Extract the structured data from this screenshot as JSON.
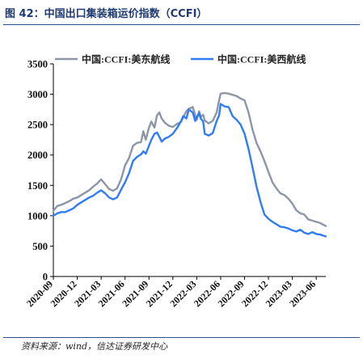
{
  "figure_title": "图 42：中国出口集装箱运价指数（CCFI）",
  "source": "资料来源：wind，信达证券研发中心",
  "chart_data": {
    "type": "line",
    "title": "",
    "xlabel": "",
    "ylabel": "",
    "ylim": [
      0,
      3500
    ],
    "yticks": [
      0,
      500,
      1000,
      1500,
      2000,
      2500,
      3000,
      3500
    ],
    "x_tick_labels": [
      "2020-09",
      "2020-12",
      "2021-03",
      "2021-06",
      "2021-09",
      "2021-12",
      "2022-03",
      "2022-06",
      "2022-09",
      "2022-12",
      "2023-03",
      "2023-06"
    ],
    "x_range_months": [
      0,
      34.2
    ],
    "grid": false,
    "legend_position": "top",
    "series": [
      {
        "name": "中国:CCFI:美东航线",
        "color": "#8c96a8",
        "points": [
          [
            0,
            1080
          ],
          [
            0.5,
            1160
          ],
          [
            1,
            1180
          ],
          [
            1.5,
            1210
          ],
          [
            2,
            1240
          ],
          [
            2.5,
            1280
          ],
          [
            3,
            1300
          ],
          [
            3.5,
            1340
          ],
          [
            4,
            1380
          ],
          [
            4.5,
            1420
          ],
          [
            5,
            1480
          ],
          [
            5.5,
            1530
          ],
          [
            6,
            1600
          ],
          [
            6.5,
            1520
          ],
          [
            7,
            1440
          ],
          [
            7.5,
            1410
          ],
          [
            8,
            1450
          ],
          [
            8.5,
            1600
          ],
          [
            9,
            1830
          ],
          [
            9.5,
            1950
          ],
          [
            10,
            2150
          ],
          [
            10.5,
            2200
          ],
          [
            11,
            2210
          ],
          [
            11.3,
            2390
          ],
          [
            11.6,
            2250
          ],
          [
            12,
            2450
          ],
          [
            12.3,
            2550
          ],
          [
            12.7,
            2450
          ],
          [
            13,
            2650
          ],
          [
            13.3,
            2700
          ],
          [
            13.6,
            2600
          ],
          [
            14,
            2530
          ],
          [
            14.5,
            2480
          ],
          [
            15,
            2460
          ],
          [
            15.5,
            2510
          ],
          [
            16,
            2540
          ],
          [
            16.3,
            2620
          ],
          [
            16.7,
            2720
          ],
          [
            17,
            2760
          ],
          [
            17.5,
            2790
          ],
          [
            17.8,
            2660
          ],
          [
            18,
            2580
          ],
          [
            18.3,
            2720
          ],
          [
            18.5,
            2630
          ],
          [
            18.8,
            2660
          ],
          [
            19,
            2570
          ],
          [
            19.5,
            2520
          ],
          [
            20,
            2560
          ],
          [
            20.5,
            2700
          ],
          [
            20.8,
            2900
          ],
          [
            21,
            3010
          ],
          [
            21.5,
            3020
          ],
          [
            22,
            3010
          ],
          [
            22.5,
            2990
          ],
          [
            23,
            2970
          ],
          [
            23.5,
            2930
          ],
          [
            24,
            2900
          ],
          [
            24.5,
            2700
          ],
          [
            25,
            2420
          ],
          [
            25.5,
            2200
          ],
          [
            26,
            2060
          ],
          [
            26.5,
            1900
          ],
          [
            27,
            1720
          ],
          [
            27.5,
            1550
          ],
          [
            28,
            1450
          ],
          [
            28.5,
            1370
          ],
          [
            29,
            1340
          ],
          [
            29.5,
            1280
          ],
          [
            30,
            1200
          ],
          [
            30.5,
            1090
          ],
          [
            31,
            1040
          ],
          [
            31.5,
            1020
          ],
          [
            32,
            940
          ],
          [
            32.5,
            920
          ],
          [
            33,
            900
          ],
          [
            33.5,
            880
          ],
          [
            34.2,
            830
          ]
        ]
      },
      {
        "name": "中国:CCFI:美西航线",
        "color": "#2f7cf6",
        "points": [
          [
            0,
            1000
          ],
          [
            0.5,
            1040
          ],
          [
            1,
            1060
          ],
          [
            1.5,
            1060
          ],
          [
            2,
            1090
          ],
          [
            2.5,
            1120
          ],
          [
            3,
            1180
          ],
          [
            3.5,
            1220
          ],
          [
            4,
            1260
          ],
          [
            4.5,
            1300
          ],
          [
            5,
            1330
          ],
          [
            5.5,
            1380
          ],
          [
            6,
            1420
          ],
          [
            6.5,
            1370
          ],
          [
            7,
            1300
          ],
          [
            7.5,
            1270
          ],
          [
            8,
            1300
          ],
          [
            8.5,
            1430
          ],
          [
            9,
            1550
          ],
          [
            9.5,
            1700
          ],
          [
            10,
            1900
          ],
          [
            10.5,
            1970
          ],
          [
            11,
            2010
          ],
          [
            11.3,
            2060
          ],
          [
            11.6,
            2020
          ],
          [
            12,
            2150
          ],
          [
            12.3,
            2250
          ],
          [
            12.7,
            2350
          ],
          [
            13,
            2370
          ],
          [
            13.3,
            2300
          ],
          [
            13.6,
            2220
          ],
          [
            14,
            2270
          ],
          [
            14.5,
            2300
          ],
          [
            15,
            2350
          ],
          [
            15.5,
            2440
          ],
          [
            16,
            2550
          ],
          [
            16.3,
            2640
          ],
          [
            16.7,
            2600
          ],
          [
            17,
            2750
          ],
          [
            17.5,
            2700
          ],
          [
            17.8,
            2560
          ],
          [
            18,
            2620
          ],
          [
            18.3,
            2690
          ],
          [
            18.5,
            2600
          ],
          [
            18.8,
            2550
          ],
          [
            19,
            2350
          ],
          [
            19.5,
            2320
          ],
          [
            20,
            2360
          ],
          [
            20.5,
            2560
          ],
          [
            20.8,
            2650
          ],
          [
            21,
            2840
          ],
          [
            21.5,
            2800
          ],
          [
            22,
            2790
          ],
          [
            22.5,
            2640
          ],
          [
            23,
            2580
          ],
          [
            23.5,
            2500
          ],
          [
            24,
            2350
          ],
          [
            24.5,
            2100
          ],
          [
            25,
            1800
          ],
          [
            25.5,
            1480
          ],
          [
            26,
            1230
          ],
          [
            26.5,
            1020
          ],
          [
            27,
            950
          ],
          [
            27.5,
            900
          ],
          [
            28,
            860
          ],
          [
            28.5,
            820
          ],
          [
            29,
            810
          ],
          [
            29.5,
            790
          ],
          [
            30,
            760
          ],
          [
            30.5,
            740
          ],
          [
            31,
            770
          ],
          [
            31.5,
            720
          ],
          [
            32,
            700
          ],
          [
            32.5,
            730
          ],
          [
            33,
            700
          ],
          [
            33.5,
            690
          ],
          [
            34.2,
            660
          ]
        ]
      }
    ]
  }
}
